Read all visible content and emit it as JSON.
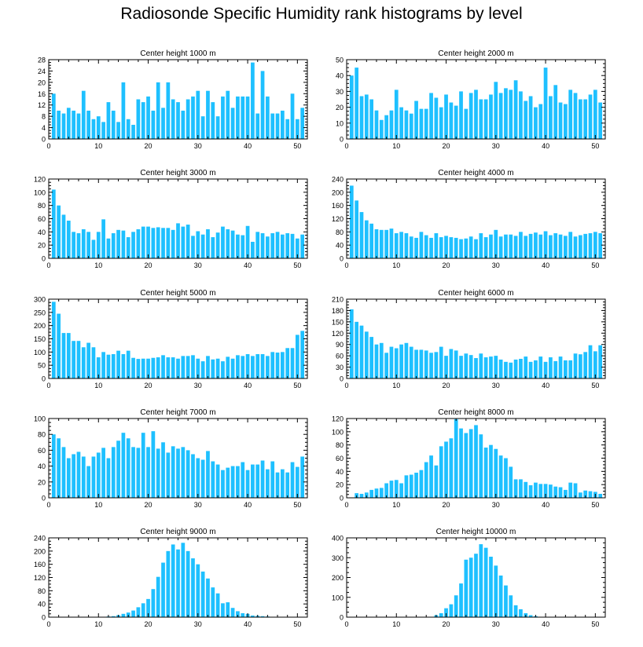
{
  "title": "Radiosonde Specific Humidity rank histograms by level",
  "colors": {
    "bar": "#1ec0ff",
    "axis": "#000000",
    "background": "#ffffff"
  },
  "chart_data": [
    {
      "type": "bar",
      "title": "Center height 1000 m",
      "xlim": [
        0,
        52
      ],
      "ylim": [
        0,
        28
      ],
      "xticks": [
        0,
        10,
        20,
        30,
        40,
        50
      ],
      "yticks": [
        0,
        4,
        8,
        12,
        16,
        20,
        24,
        28
      ],
      "x": [
        1,
        2,
        3,
        4,
        5,
        6,
        7,
        8,
        9,
        10,
        11,
        12,
        13,
        14,
        15,
        16,
        17,
        18,
        19,
        20,
        21,
        22,
        23,
        24,
        25,
        26,
        27,
        28,
        29,
        30,
        31,
        32,
        33,
        34,
        35,
        36,
        37,
        38,
        39,
        40,
        41,
        42,
        43,
        44,
        45,
        46,
        47,
        48,
        49,
        50,
        51
      ],
      "values": [
        16,
        10,
        9,
        11,
        10,
        9,
        17,
        10,
        7,
        8,
        6,
        13,
        10,
        6,
        20,
        7,
        5,
        14,
        13,
        15,
        10,
        20,
        11,
        20,
        14,
        13,
        10,
        14,
        15,
        17,
        8,
        17,
        13,
        8,
        15,
        17,
        11,
        15,
        15,
        15,
        27,
        9,
        24,
        15,
        9,
        9,
        10,
        7,
        16,
        7,
        11
      ]
    },
    {
      "type": "bar",
      "title": "Center height 2000 m",
      "xlim": [
        0,
        52
      ],
      "ylim": [
        0,
        50
      ],
      "xticks": [
        0,
        10,
        20,
        30,
        40,
        50
      ],
      "yticks": [
        0,
        10,
        20,
        30,
        40,
        50
      ],
      "x": [
        1,
        2,
        3,
        4,
        5,
        6,
        7,
        8,
        9,
        10,
        11,
        12,
        13,
        14,
        15,
        16,
        17,
        18,
        19,
        20,
        21,
        22,
        23,
        24,
        25,
        26,
        27,
        28,
        29,
        30,
        31,
        32,
        33,
        34,
        35,
        36,
        37,
        38,
        39,
        40,
        41,
        42,
        43,
        44,
        45,
        46,
        47,
        48,
        49,
        50,
        51
      ],
      "values": [
        40,
        45,
        27,
        28,
        25,
        18,
        12,
        15,
        18,
        31,
        20,
        18,
        16,
        24,
        19,
        19,
        29,
        26,
        20,
        28,
        23,
        21,
        30,
        19,
        29,
        31,
        25,
        25,
        28,
        36,
        29,
        32,
        31,
        37,
        30,
        24,
        27,
        20,
        22,
        45,
        27,
        34,
        23,
        22,
        31,
        29,
        25,
        25,
        28,
        31,
        23
      ]
    },
    {
      "type": "bar",
      "title": "Center height 3000 m",
      "xlim": [
        0,
        52
      ],
      "ylim": [
        0,
        120
      ],
      "xticks": [
        0,
        10,
        20,
        30,
        40,
        50
      ],
      "yticks": [
        0,
        20,
        40,
        60,
        80,
        100,
        120
      ],
      "x": [
        1,
        2,
        3,
        4,
        5,
        6,
        7,
        8,
        9,
        10,
        11,
        12,
        13,
        14,
        15,
        16,
        17,
        18,
        19,
        20,
        21,
        22,
        23,
        24,
        25,
        26,
        27,
        28,
        29,
        30,
        31,
        32,
        33,
        34,
        35,
        36,
        37,
        38,
        39,
        40,
        41,
        42,
        43,
        44,
        45,
        46,
        47,
        48,
        49,
        50,
        51
      ],
      "values": [
        104,
        80,
        66,
        57,
        40,
        38,
        44,
        40,
        28,
        40,
        59,
        30,
        38,
        43,
        42,
        32,
        40,
        44,
        48,
        48,
        46,
        47,
        46,
        46,
        43,
        53,
        48,
        51,
        34,
        41,
        36,
        44,
        32,
        39,
        48,
        44,
        42,
        36,
        35,
        49,
        25,
        40,
        38,
        33,
        38,
        40,
        36,
        38,
        37,
        30,
        36
      ]
    },
    {
      "type": "bar",
      "title": "Center height 4000 m",
      "xlim": [
        0,
        52
      ],
      "ylim": [
        0,
        240
      ],
      "xticks": [
        0,
        10,
        20,
        30,
        40,
        50
      ],
      "yticks": [
        0,
        40,
        80,
        120,
        160,
        200,
        240
      ],
      "x": [
        1,
        2,
        3,
        4,
        5,
        6,
        7,
        8,
        9,
        10,
        11,
        12,
        13,
        14,
        15,
        16,
        17,
        18,
        19,
        20,
        21,
        22,
        23,
        24,
        25,
        26,
        27,
        28,
        29,
        30,
        31,
        32,
        33,
        34,
        35,
        36,
        37,
        38,
        39,
        40,
        41,
        42,
        43,
        44,
        45,
        46,
        47,
        48,
        49,
        50,
        51
      ],
      "values": [
        220,
        175,
        140,
        115,
        105,
        88,
        86,
        86,
        90,
        76,
        80,
        76,
        66,
        62,
        80,
        70,
        62,
        76,
        64,
        68,
        64,
        62,
        58,
        60,
        66,
        58,
        76,
        64,
        72,
        86,
        66,
        72,
        72,
        68,
        80,
        68,
        74,
        78,
        72,
        82,
        70,
        76,
        72,
        68,
        80,
        66,
        70,
        74,
        76,
        80,
        76
      ]
    },
    {
      "type": "bar",
      "title": "Center height 5000 m",
      "xlim": [
        0,
        52
      ],
      "ylim": [
        0,
        300
      ],
      "xticks": [
        0,
        10,
        20,
        30,
        40,
        50
      ],
      "yticks": [
        0,
        50,
        100,
        150,
        200,
        250,
        300
      ],
      "x": [
        1,
        2,
        3,
        4,
        5,
        6,
        7,
        8,
        9,
        10,
        11,
        12,
        13,
        14,
        15,
        16,
        17,
        18,
        19,
        20,
        21,
        22,
        23,
        24,
        25,
        26,
        27,
        28,
        29,
        30,
        31,
        32,
        33,
        34,
        35,
        36,
        37,
        38,
        39,
        40,
        41,
        42,
        43,
        44,
        45,
        46,
        47,
        48,
        49,
        50,
        51
      ],
      "values": [
        290,
        245,
        172,
        172,
        142,
        142,
        118,
        135,
        118,
        80,
        100,
        90,
        92,
        105,
        92,
        105,
        78,
        74,
        75,
        75,
        78,
        80,
        88,
        80,
        80,
        75,
        85,
        85,
        88,
        75,
        65,
        85,
        72,
        75,
        65,
        82,
        75,
        88,
        85,
        92,
        85,
        92,
        92,
        85,
        100,
        98,
        100,
        115,
        115,
        165,
        180
      ]
    },
    {
      "type": "bar",
      "title": "Center height 6000 m",
      "xlim": [
        0,
        52
      ],
      "ylim": [
        0,
        210
      ],
      "xticks": [
        0,
        10,
        20,
        30,
        40,
        50
      ],
      "yticks": [
        0,
        30,
        60,
        90,
        120,
        150,
        180,
        210
      ],
      "x": [
        1,
        2,
        3,
        4,
        5,
        6,
        7,
        8,
        9,
        10,
        11,
        12,
        13,
        14,
        15,
        16,
        17,
        18,
        19,
        20,
        21,
        22,
        23,
        24,
        25,
        26,
        27,
        28,
        29,
        30,
        31,
        32,
        33,
        34,
        35,
        36,
        37,
        38,
        39,
        40,
        41,
        42,
        43,
        44,
        45,
        46,
        47,
        48,
        49,
        50,
        51
      ],
      "values": [
        183,
        150,
        140,
        124,
        110,
        90,
        94,
        68,
        84,
        80,
        90,
        94,
        84,
        76,
        76,
        74,
        68,
        70,
        84,
        60,
        78,
        74,
        60,
        66,
        62,
        54,
        66,
        56,
        58,
        60,
        50,
        44,
        42,
        50,
        52,
        58,
        44,
        48,
        58,
        44,
        56,
        46,
        58,
        48,
        48,
        66,
        64,
        70,
        88,
        72,
        88
      ]
    },
    {
      "type": "bar",
      "title": "Center height 7000 m",
      "xlim": [
        0,
        52
      ],
      "ylim": [
        0,
        100
      ],
      "xticks": [
        0,
        10,
        20,
        30,
        40,
        50
      ],
      "yticks": [
        0,
        20,
        40,
        60,
        80,
        100
      ],
      "x": [
        1,
        2,
        3,
        4,
        5,
        6,
        7,
        8,
        9,
        10,
        11,
        12,
        13,
        14,
        15,
        16,
        17,
        18,
        19,
        20,
        21,
        22,
        23,
        24,
        25,
        26,
        27,
        28,
        29,
        30,
        31,
        32,
        33,
        34,
        35,
        36,
        37,
        38,
        39,
        40,
        41,
        42,
        43,
        44,
        45,
        46,
        47,
        48,
        49,
        50,
        51
      ],
      "values": [
        80,
        75,
        64,
        50,
        55,
        58,
        52,
        40,
        52,
        57,
        63,
        50,
        64,
        72,
        82,
        75,
        64,
        63,
        82,
        64,
        84,
        62,
        70,
        57,
        65,
        62,
        64,
        60,
        55,
        50,
        48,
        59,
        46,
        42,
        35,
        38,
        40,
        40,
        45,
        35,
        42,
        42,
        47,
        36,
        46,
        32,
        36,
        32,
        45,
        39,
        52
      ]
    },
    {
      "type": "bar",
      "title": "Center height 8000 m",
      "xlim": [
        0,
        52
      ],
      "ylim": [
        0,
        120
      ],
      "xticks": [
        0,
        10,
        20,
        30,
        40,
        50
      ],
      "yticks": [
        0,
        20,
        40,
        60,
        80,
        100,
        120
      ],
      "x": [
        1,
        2,
        3,
        4,
        5,
        6,
        7,
        8,
        9,
        10,
        11,
        12,
        13,
        14,
        15,
        16,
        17,
        18,
        19,
        20,
        21,
        22,
        23,
        24,
        25,
        26,
        27,
        28,
        29,
        30,
        31,
        32,
        33,
        34,
        35,
        36,
        37,
        38,
        39,
        40,
        41,
        42,
        43,
        44,
        45,
        46,
        47,
        48,
        49,
        50,
        51
      ],
      "values": [
        0,
        7,
        6,
        8,
        12,
        14,
        15,
        22,
        26,
        27,
        22,
        34,
        35,
        38,
        42,
        54,
        64,
        49,
        78,
        85,
        90,
        119,
        105,
        98,
        104,
        110,
        96,
        76,
        80,
        74,
        64,
        60,
        47,
        28,
        28,
        24,
        19,
        23,
        21,
        21,
        20,
        17,
        16,
        12,
        23,
        22,
        8,
        11,
        10,
        9,
        6
      ]
    },
    {
      "type": "bar",
      "title": "Center height 9000 m",
      "xlim": [
        0,
        52
      ],
      "ylim": [
        0,
        240
      ],
      "xticks": [
        0,
        10,
        20,
        30,
        40,
        50
      ],
      "yticks": [
        0,
        40,
        80,
        120,
        160,
        200,
        240
      ],
      "x": [
        1,
        2,
        3,
        4,
        5,
        6,
        7,
        8,
        9,
        10,
        11,
        12,
        13,
        14,
        15,
        16,
        17,
        18,
        19,
        20,
        21,
        22,
        23,
        24,
        25,
        26,
        27,
        28,
        29,
        30,
        31,
        32,
        33,
        34,
        35,
        36,
        37,
        38,
        39,
        40,
        41,
        42,
        43,
        44,
        45,
        46,
        47,
        48,
        49,
        50,
        51
      ],
      "values": [
        0,
        0,
        0,
        0,
        0,
        0,
        0,
        0,
        0,
        0,
        1,
        2,
        3,
        6,
        10,
        14,
        20,
        30,
        42,
        55,
        85,
        122,
        165,
        200,
        220,
        205,
        225,
        200,
        178,
        160,
        138,
        117,
        90,
        72,
        42,
        45,
        28,
        18,
        12,
        10,
        5,
        4,
        3,
        2,
        1,
        1,
        0,
        0,
        0,
        0,
        0
      ]
    },
    {
      "type": "bar",
      "title": "Center height 10000 m",
      "xlim": [
        0,
        52
      ],
      "ylim": [
        0,
        400
      ],
      "xticks": [
        0,
        10,
        20,
        30,
        40,
        50
      ],
      "yticks": [
        0,
        100,
        200,
        300,
        400
      ],
      "x": [
        1,
        2,
        3,
        4,
        5,
        6,
        7,
        8,
        9,
        10,
        11,
        12,
        13,
        14,
        15,
        16,
        17,
        18,
        19,
        20,
        21,
        22,
        23,
        24,
        25,
        26,
        27,
        28,
        29,
        30,
        31,
        32,
        33,
        34,
        35,
        36,
        37,
        38,
        39,
        40,
        41,
        42,
        43,
        44,
        45,
        46,
        47,
        48,
        49,
        50,
        51
      ],
      "values": [
        0,
        0,
        0,
        0,
        0,
        0,
        0,
        0,
        0,
        0,
        0,
        0,
        0,
        0,
        0,
        0,
        2,
        10,
        20,
        45,
        65,
        110,
        170,
        290,
        300,
        320,
        368,
        350,
        305,
        260,
        210,
        160,
        110,
        60,
        40,
        20,
        10,
        5,
        2,
        1,
        0,
        0,
        0,
        0,
        0,
        0,
        0,
        0,
        0,
        0,
        0
      ]
    }
  ]
}
